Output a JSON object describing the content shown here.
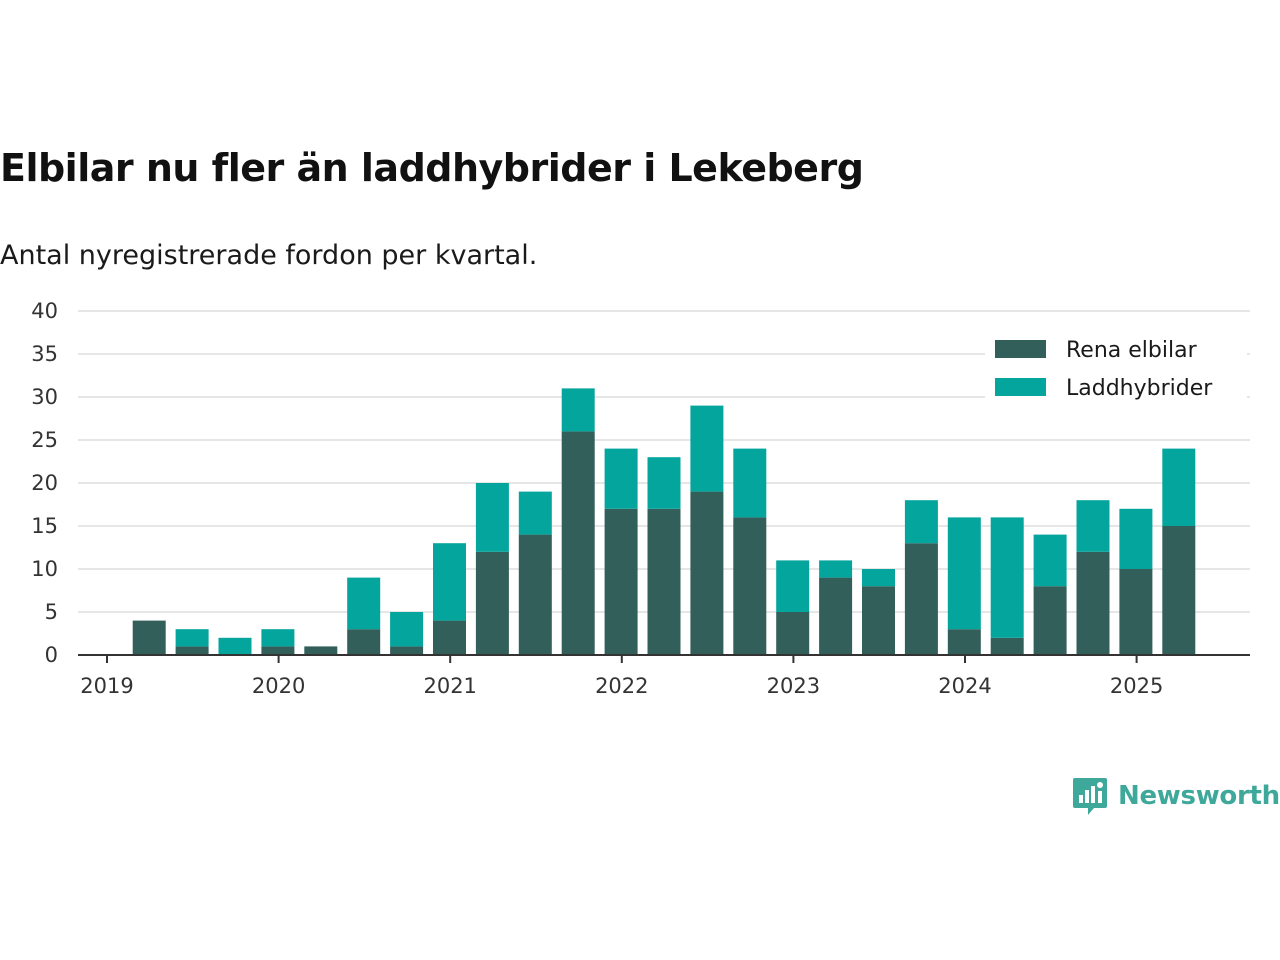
{
  "title": "Elbilar nu fler än laddhybrider i Lekeberg",
  "subtitle": "Antal nyregistrerade fordon per kvartal.",
  "brand": {
    "name": "Newsworthy",
    "icon": "newsworthy-logo-icon",
    "color": "#3ea89a"
  },
  "colors": {
    "rena_elbilar": "#335f5a",
    "laddhybrider": "#04a59d",
    "grid": "#dddddd",
    "axis": "#333333"
  },
  "chart_data": {
    "type": "bar",
    "stacked": true,
    "categories": [
      "2019 Q1",
      "2019 Q2",
      "2019 Q3",
      "2019 Q4",
      "2020 Q1",
      "2020 Q2",
      "2020 Q3",
      "2020 Q4",
      "2021 Q1",
      "2021 Q2",
      "2021 Q3",
      "2021 Q4",
      "2022 Q1",
      "2022 Q2",
      "2022 Q3",
      "2022 Q4",
      "2023 Q1",
      "2023 Q2",
      "2023 Q3",
      "2023 Q4",
      "2024 Q1",
      "2024 Q2",
      "2024 Q3",
      "2024 Q4",
      "2025 Q1",
      "2025 Q2"
    ],
    "series": [
      {
        "name": "Rena elbilar",
        "values": [
          0,
          4,
          1,
          0,
          1,
          1,
          3,
          1,
          4,
          12,
          14,
          26,
          17,
          17,
          19,
          16,
          5,
          9,
          8,
          13,
          3,
          2,
          8,
          12,
          10,
          15
        ]
      },
      {
        "name": "Laddhybrider",
        "values": [
          0,
          0,
          2,
          2,
          2,
          0,
          6,
          4,
          9,
          8,
          5,
          5,
          7,
          6,
          10,
          8,
          6,
          2,
          2,
          5,
          13,
          14,
          6,
          6,
          7,
          9
        ]
      }
    ],
    "x_tick_labels": [
      "2019",
      "2020",
      "2021",
      "2022",
      "2023",
      "2024",
      "2025"
    ],
    "y_ticks": [
      0,
      5,
      10,
      15,
      20,
      25,
      30,
      35,
      40
    ],
    "ylim": [
      0,
      40
    ],
    "grid": true,
    "legend_position": "top-right"
  }
}
